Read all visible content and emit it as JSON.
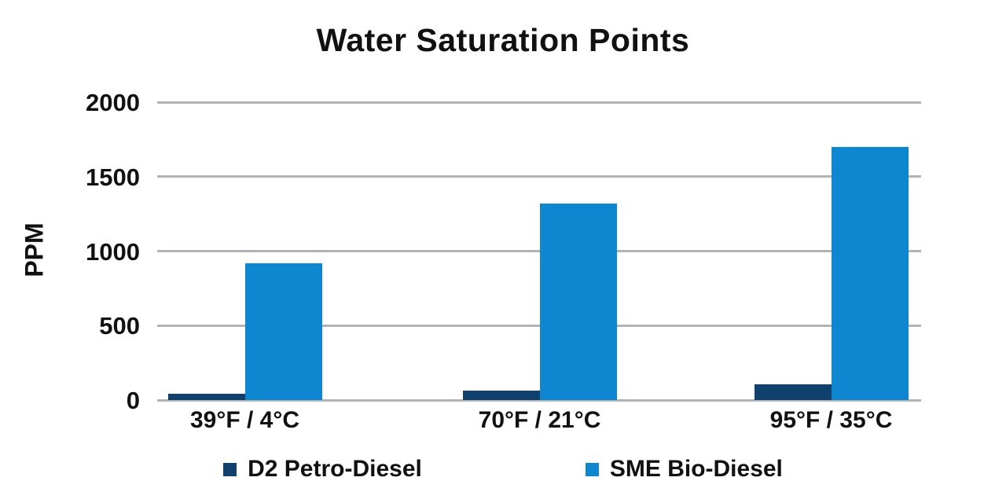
{
  "chart_data": {
    "type": "bar",
    "title": "Water Saturation Points",
    "ylabel": "PPM",
    "xlabel": "",
    "categories": [
      "39°F / 4°C",
      "70°F / 21°C",
      "95°F / 35°C"
    ],
    "series": [
      {
        "name": "D2 Petro-Diesel",
        "color": "#10406e",
        "values": [
          40,
          65,
          105
        ]
      },
      {
        "name": "SME Bio-Diesel",
        "color": "#0e86d0",
        "values": [
          920,
          1320,
          1700
        ]
      }
    ],
    "ylim": [
      0,
      2000
    ],
    "yticks": [
      0,
      500,
      1000,
      1500,
      2000
    ],
    "grid": true,
    "legend_position": "bottom"
  },
  "colors": {
    "gridline": "#b1b4b7",
    "text": "#111111",
    "background": "#ffffff"
  }
}
